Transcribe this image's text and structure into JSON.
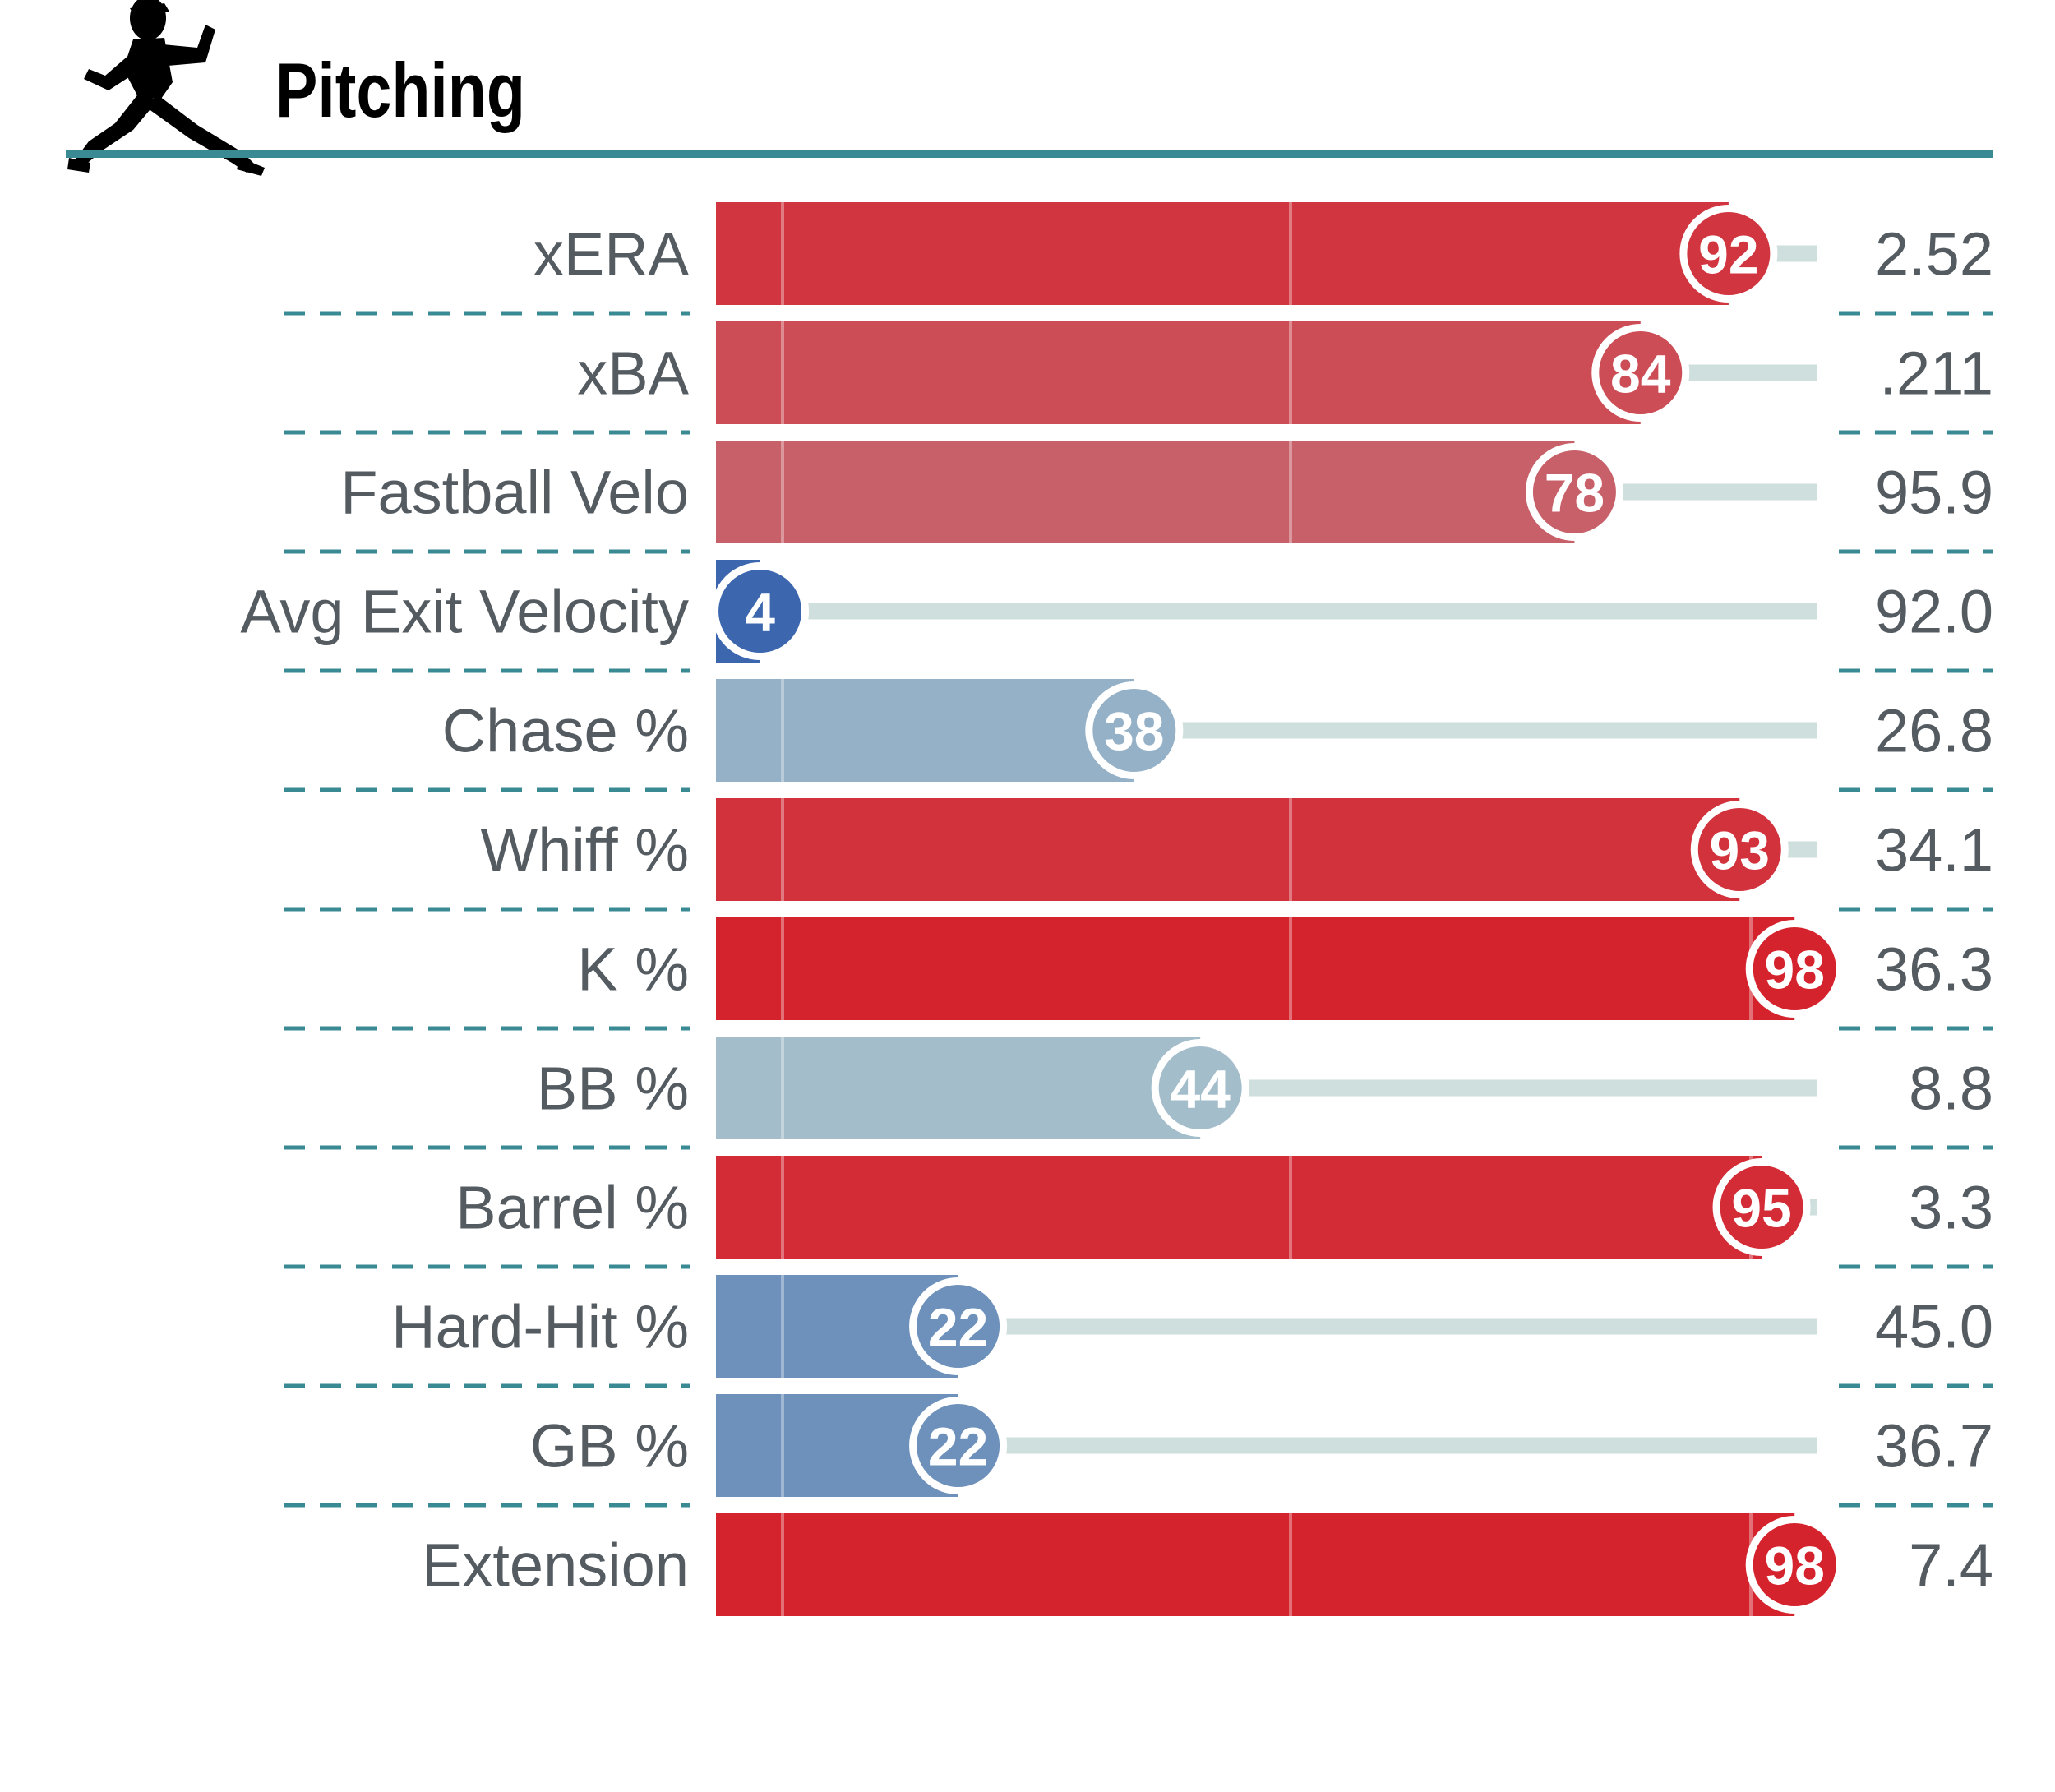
{
  "title": "Pitching",
  "chart_data": {
    "type": "bar",
    "title": "Pitching",
    "categories": [
      "xERA",
      "xBA",
      "Fastball Velo",
      "Avg Exit Velocity",
      "Chase %",
      "Whiff %",
      "K %",
      "BB %",
      "Barrel %",
      "Hard-Hit %",
      "GB %",
      "Extension"
    ],
    "percentiles": [
      92,
      84,
      78,
      4,
      38,
      93,
      98,
      44,
      95,
      22,
      22,
      98
    ],
    "values": [
      "2.52",
      ".211",
      "95.9",
      "92.0",
      "26.8",
      "34.1",
      "36.3",
      "8.8",
      "3.3",
      "45.0",
      "36.7",
      "7.4"
    ],
    "xlim": [
      0,
      100
    ],
    "grid": false,
    "xlabel": "",
    "ylabel": ""
  },
  "colors": {
    "accent_line": "#3a8a94",
    "dash_line": "#3a8a94",
    "track": "#cfdfde",
    "label_text": "#555c61",
    "title_text": "#000000",
    "icon": "#000000"
  },
  "icons": {
    "title_icon": "pitcher-silhouette-icon"
  }
}
